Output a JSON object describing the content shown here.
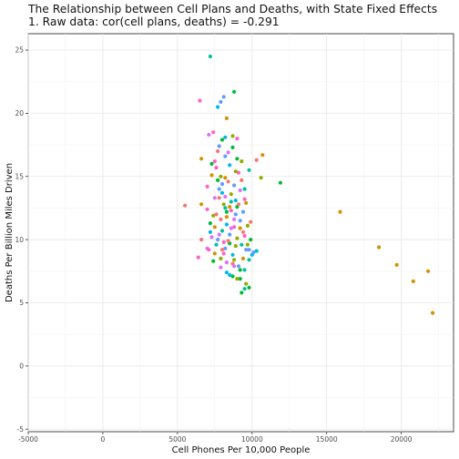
{
  "chart_data": {
    "type": "scatter",
    "title": "The Relationship between Cell Plans and Deaths, with State Fixed Effects",
    "subtitle": "1. Raw data: cor(cell plans, deaths) = -0.291",
    "xlabel": "Cell Phones Per 10,000 People",
    "ylabel": "Deaths Per Billion Miles Driven",
    "xlim": [
      -5000,
      23500
    ],
    "ylim": [
      -5.2,
      26.3
    ],
    "x_ticks": [
      -5000,
      0,
      5000,
      10000,
      15000,
      20000
    ],
    "y_ticks": [
      -5,
      0,
      5,
      10,
      15,
      20,
      25
    ],
    "grid": true,
    "legend": "none",
    "palette": [
      "#F8766D",
      "#D39200",
      "#93AA00",
      "#00BA38",
      "#00C19F",
      "#00B9E3",
      "#619CFF",
      "#DB72FB",
      "#FF61C3"
    ],
    "points": [
      [
        7200,
        24.5,
        4
      ],
      [
        6500,
        21.0,
        8
      ],
      [
        7900,
        20.9,
        6
      ],
      [
        8800,
        21.7,
        3
      ],
      [
        8100,
        21.3,
        6
      ],
      [
        7700,
        20.5,
        5
      ],
      [
        8300,
        19.6,
        1
      ],
      [
        7400,
        18.5,
        8
      ],
      [
        7100,
        18.3,
        7
      ],
      [
        8000,
        17.9,
        3
      ],
      [
        8700,
        18.2,
        2
      ],
      [
        9000,
        18.0,
        8
      ],
      [
        7800,
        17.4,
        6
      ],
      [
        6600,
        16.4,
        1
      ],
      [
        7300,
        16.0,
        3
      ],
      [
        7600,
        15.7,
        8
      ],
      [
        8500,
        15.9,
        5
      ],
      [
        9300,
        16.2,
        2
      ],
      [
        10700,
        16.7,
        1
      ],
      [
        10300,
        16.3,
        0
      ],
      [
        10600,
        14.9,
        2
      ],
      [
        11900,
        14.5,
        3
      ],
      [
        5500,
        12.7,
        0
      ],
      [
        6600,
        12.8,
        1
      ],
      [
        7000,
        12.4,
        8
      ],
      [
        8200,
        13.4,
        7
      ],
      [
        8600,
        13.0,
        4
      ],
      [
        9000,
        12.6,
        3
      ],
      [
        9400,
        12.2,
        6
      ],
      [
        7400,
        11.9,
        2
      ],
      [
        7900,
        11.6,
        0
      ],
      [
        8300,
        11.2,
        5
      ],
      [
        8800,
        11.0,
        8
      ],
      [
        9200,
        10.9,
        1
      ],
      [
        9700,
        11.1,
        2
      ],
      [
        7300,
        10.2,
        7
      ],
      [
        7700,
        10.0,
        6
      ],
      [
        8100,
        9.8,
        8
      ],
      [
        8500,
        9.7,
        3
      ],
      [
        8900,
        9.5,
        2
      ],
      [
        9300,
        9.6,
        4
      ],
      [
        9800,
        9.2,
        6
      ],
      [
        10300,
        9.1,
        5
      ],
      [
        6600,
        10.0,
        0
      ],
      [
        6400,
        8.6,
        8
      ],
      [
        7000,
        9.3,
        7
      ],
      [
        7500,
        8.9,
        1
      ],
      [
        7900,
        8.5,
        2
      ],
      [
        8300,
        8.2,
        7
      ],
      [
        8700,
        8.1,
        0
      ],
      [
        9100,
        7.9,
        6
      ],
      [
        9500,
        7.6,
        4
      ],
      [
        7900,
        7.8,
        7
      ],
      [
        8300,
        7.4,
        5
      ],
      [
        8700,
        7.1,
        3
      ],
      [
        9200,
        6.9,
        3
      ],
      [
        9600,
        6.5,
        2
      ],
      [
        9500,
        6.1,
        4
      ],
      [
        9800,
        6.2,
        3
      ],
      [
        9300,
        5.8,
        3
      ],
      [
        15900,
        12.2,
        1
      ],
      [
        18500,
        9.4,
        1
      ],
      [
        19700,
        8.0,
        1
      ],
      [
        20800,
        6.7,
        1
      ],
      [
        21800,
        7.5,
        1
      ],
      [
        22100,
        4.2,
        1
      ],
      [
        7700,
        17.0,
        0
      ],
      [
        8200,
        16.6,
        6
      ],
      [
        8700,
        17.3,
        3
      ],
      [
        9100,
        15.3,
        8
      ],
      [
        7900,
        15.0,
        2
      ],
      [
        8400,
        14.6,
        0
      ],
      [
        8800,
        14.3,
        6
      ],
      [
        7800,
        14.0,
        6
      ],
      [
        8000,
        13.7,
        5
      ],
      [
        7500,
        13.3,
        7
      ],
      [
        9200,
        13.9,
        7
      ],
      [
        8600,
        12.3,
        8
      ],
      [
        7600,
        12.0,
        0
      ],
      [
        8100,
        12.8,
        2
      ],
      [
        9600,
        12.9,
        1
      ],
      [
        8900,
        12.0,
        6
      ],
      [
        7200,
        11.3,
        3
      ],
      [
        8000,
        10.7,
        4
      ],
      [
        8500,
        10.4,
        6
      ],
      [
        9400,
        10.6,
        0
      ],
      [
        9900,
        10.0,
        3
      ],
      [
        7100,
        9.2,
        8
      ],
      [
        8200,
        9.3,
        6
      ],
      [
        8700,
        8.8,
        5
      ],
      [
        9400,
        8.5,
        1
      ],
      [
        7400,
        8.3,
        3
      ],
      [
        8800,
        7.9,
        7
      ],
      [
        9000,
        6.9,
        2
      ],
      [
        10000,
        8.8,
        5
      ],
      [
        9700,
        9.6,
        2
      ],
      [
        8400,
        16.9,
        7
      ],
      [
        9800,
        15.5,
        4
      ],
      [
        7300,
        15.1,
        1
      ],
      [
        8200,
        14.9,
        1
      ],
      [
        7000,
        14.2,
        8
      ],
      [
        9500,
        14.0,
        4
      ],
      [
        8000,
        14.4,
        6
      ],
      [
        7800,
        13.3,
        0
      ],
      [
        8600,
        13.6,
        2
      ],
      [
        9100,
        12.8,
        0
      ],
      [
        8300,
        12.2,
        3
      ],
      [
        8800,
        11.6,
        7
      ],
      [
        7500,
        11.0,
        1
      ],
      [
        7800,
        10.4,
        7
      ],
      [
        9000,
        10.1,
        2
      ],
      [
        8400,
        9.9,
        0
      ],
      [
        9600,
        9.2,
        6
      ],
      [
        7600,
        9.6,
        4
      ],
      [
        8100,
        8.9,
        8
      ],
      [
        8800,
        8.4,
        2
      ],
      [
        9800,
        8.4,
        4
      ],
      [
        9200,
        7.6,
        3
      ],
      [
        8500,
        7.2,
        5
      ],
      [
        8200,
        18.1,
        5
      ],
      [
        9000,
        16.4,
        3
      ],
      [
        7500,
        16.2,
        8
      ],
      [
        8900,
        15.4,
        2
      ],
      [
        9500,
        13.2,
        8
      ],
      [
        8300,
        11.8,
        1
      ],
      [
        9200,
        11.5,
        6
      ],
      [
        9900,
        11.4,
        0
      ],
      [
        7200,
        10.6,
        5
      ],
      [
        8600,
        10.9,
        7
      ],
      [
        9500,
        10.3,
        8
      ],
      [
        8000,
        9.2,
        0
      ],
      [
        10100,
        9.0,
        6
      ],
      [
        8500,
        12.6,
        1
      ],
      [
        8200,
        12.5,
        4
      ],
      [
        8900,
        13.1,
        5
      ],
      [
        7700,
        14.7,
        3
      ],
      [
        9300,
        14.7,
        0
      ]
    ]
  }
}
